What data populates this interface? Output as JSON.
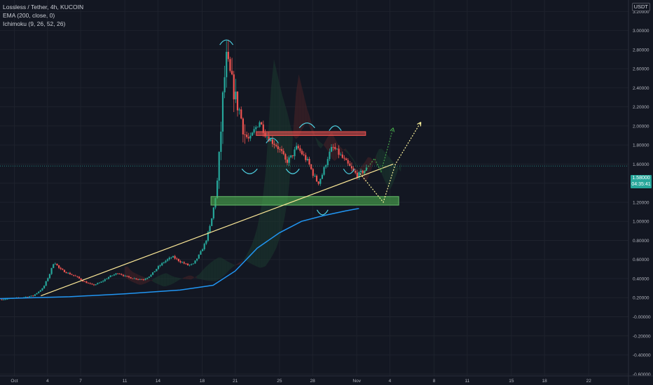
{
  "legend": {
    "symbol": "Lossless / Tether, 4h, KUCOIN",
    "ema": "EMA (200, close, 0)",
    "ichimoku": "Ichimoku (9, 26, 52, 26)"
  },
  "currency": "USDT",
  "current_price": {
    "value": "1.58000",
    "timer": "04:35:41",
    "color": "#26a69a"
  },
  "colors": {
    "background": "#131722",
    "grid": "#1e222d",
    "up": "#26a69a",
    "down": "#ef5350",
    "ema": "#2196f3",
    "trendline": "#ffeb99",
    "resistance": "#ef5350",
    "support": "#4caf50",
    "cloud_bull": "#1c3a2f",
    "cloud_bear": "#4a2227"
  },
  "chart_data": {
    "type": "candlestick",
    "x_ticks": [
      {
        "label": "Oct",
        "day": 0
      },
      {
        "label": "4",
        "day": 3
      },
      {
        "label": "7",
        "day": 6
      },
      {
        "label": "11",
        "day": 10
      },
      {
        "label": "14",
        "day": 13
      },
      {
        "label": "18",
        "day": 17
      },
      {
        "label": "21",
        "day": 20
      },
      {
        "label": "25",
        "day": 24
      },
      {
        "label": "28",
        "day": 27
      },
      {
        "label": "Nov",
        "day": 31
      },
      {
        "label": "4",
        "day": 34
      },
      {
        "label": "8",
        "day": 38
      },
      {
        "label": "11",
        "day": 41
      },
      {
        "label": "15",
        "day": 45
      },
      {
        "label": "18",
        "day": 48
      },
      {
        "label": "22",
        "day": 52
      }
    ],
    "y_ticks": [
      "3.20000",
      "3.00000",
      "2.80000",
      "2.60000",
      "2.40000",
      "2.20000",
      "2.00000",
      "1.80000",
      "1.60000",
      "1.40000",
      "1.20000",
      "1.00000",
      "0.80000",
      "0.60000",
      "0.40000",
      "0.20000",
      "-0.00000",
      "-0.20000",
      "-0.40000",
      "-0.60000"
    ],
    "y_tick_values": [
      3.2,
      3.0,
      2.8,
      2.6,
      2.4,
      2.2,
      2.0,
      1.8,
      1.6,
      1.4,
      1.2,
      1.0,
      0.8,
      0.6,
      0.4,
      0.2,
      0.0,
      -0.2,
      -0.4,
      -0.6
    ],
    "ylim": [
      -0.62,
      3.32
    ],
    "xlim": [
      -1.3,
      55.6
    ],
    "candle_interval_days": 0.1667,
    "close_path": [
      [
        -1.3,
        0.18
      ],
      [
        0.6,
        0.2
      ],
      [
        1.7,
        0.22
      ],
      [
        2.6,
        0.3
      ],
      [
        3.2,
        0.45
      ],
      [
        3.6,
        0.58
      ],
      [
        4.1,
        0.5
      ],
      [
        4.8,
        0.46
      ],
      [
        5.6,
        0.42
      ],
      [
        6.3,
        0.37
      ],
      [
        7.1,
        0.33
      ],
      [
        7.8,
        0.36
      ],
      [
        8.6,
        0.42
      ],
      [
        9.4,
        0.46
      ],
      [
        10.1,
        0.42
      ],
      [
        10.9,
        0.4
      ],
      [
        11.7,
        0.39
      ],
      [
        12.4,
        0.44
      ],
      [
        13.0,
        0.52
      ],
      [
        13.6,
        0.58
      ],
      [
        14.3,
        0.63
      ],
      [
        15.0,
        0.58
      ],
      [
        15.7,
        0.54
      ],
      [
        16.2,
        0.55
      ],
      [
        16.8,
        0.66
      ],
      [
        17.3,
        0.78
      ],
      [
        17.8,
        0.98
      ],
      [
        18.2,
        1.25
      ],
      [
        18.4,
        1.45
      ],
      [
        18.6,
        1.75
      ],
      [
        18.9,
        2.35
      ],
      [
        19.2,
        2.7
      ],
      [
        19.6,
        2.5
      ],
      [
        20.0,
        2.3
      ],
      [
        20.4,
        2.15
      ],
      [
        20.9,
        1.9
      ],
      [
        21.3,
        1.85
      ],
      [
        21.7,
        1.95
      ],
      [
        22.2,
        2.05
      ],
      [
        22.7,
        1.92
      ],
      [
        23.2,
        1.85
      ],
      [
        23.7,
        1.8
      ],
      [
        24.2,
        1.72
      ],
      [
        24.6,
        1.62
      ],
      [
        25.1,
        1.68
      ],
      [
        25.6,
        1.78
      ],
      [
        26.1,
        1.7
      ],
      [
        26.6,
        1.62
      ],
      [
        27.1,
        1.48
      ],
      [
        27.5,
        1.4
      ],
      [
        27.9,
        1.5
      ],
      [
        28.4,
        1.68
      ],
      [
        28.8,
        1.78
      ],
      [
        29.3,
        1.72
      ],
      [
        29.8,
        1.65
      ],
      [
        30.3,
        1.58
      ],
      [
        30.7,
        1.52
      ],
      [
        31.1,
        1.48
      ],
      [
        31.5,
        1.52
      ],
      [
        31.9,
        1.55
      ]
    ],
    "ema200": [
      [
        -1.3,
        0.19
      ],
      [
        5,
        0.21
      ],
      [
        10,
        0.24
      ],
      [
        15,
        0.28
      ],
      [
        18,
        0.33
      ],
      [
        20,
        0.48
      ],
      [
        22,
        0.72
      ],
      [
        24,
        0.88
      ],
      [
        26,
        1.0
      ],
      [
        28,
        1.06
      ],
      [
        30,
        1.11
      ],
      [
        31.2,
        1.135
      ]
    ],
    "annotations": {
      "resistance_zone": {
        "x0": 21.9,
        "x1": 31.8,
        "y0": 1.9,
        "y1": 1.94
      },
      "support_zone": {
        "x0": 17.8,
        "x1": 34.8,
        "y0": 1.17,
        "y1": 1.26
      },
      "trendline": {
        "x0": 2.4,
        "y0": 0.22,
        "x1": 34.3,
        "y1": 1.6
      },
      "current_price_line": 1.58,
      "projection_white": [
        [
          31.3,
          1.5
        ],
        [
          33.4,
          1.2
        ],
        [
          34.5,
          1.6
        ],
        [
          36.8,
          2.04
        ]
      ],
      "projection_green": [
        [
          31.6,
          1.5
        ],
        [
          32.6,
          1.66
        ],
        [
          33.2,
          1.52
        ],
        [
          34.3,
          1.98
        ]
      ]
    }
  }
}
